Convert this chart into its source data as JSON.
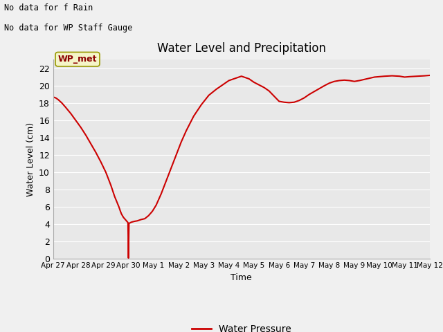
{
  "title": "Water Level and Precipitation",
  "xlabel": "Time",
  "ylabel": "Water Level (cm)",
  "annotation_lines": [
    "No data for f Rain",
    "No data for WP Staff Gauge"
  ],
  "legend_label": "Water Pressure",
  "legend_color": "#cc0000",
  "plot_bg_color": "#e8e8e8",
  "line_color": "#cc0000",
  "ylim": [
    0,
    23
  ],
  "yticks": [
    0,
    2,
    4,
    6,
    8,
    10,
    12,
    14,
    16,
    18,
    20,
    22
  ],
  "x_tick_labels": [
    "Apr 27",
    "Apr 28",
    "Apr 29",
    "Apr 30",
    "May 1",
    "May 2",
    "May 3",
    "May 4",
    "May 5",
    "May 6",
    "May 7",
    "May 8",
    "May 9",
    "May 10",
    "May 11",
    "May 12"
  ],
  "x_numeric": [
    0,
    1,
    2,
    3,
    4,
    5,
    6,
    7,
    8,
    9,
    10,
    11,
    12,
    13,
    14,
    15
  ],
  "water_x": [
    0.0,
    0.1,
    0.2,
    0.35,
    0.5,
    0.7,
    0.9,
    1.1,
    1.3,
    1.5,
    1.7,
    1.9,
    2.1,
    2.3,
    2.45,
    2.55,
    2.62,
    2.68,
    2.72,
    2.76,
    2.8,
    2.83,
    2.86,
    2.89,
    2.92,
    2.95,
    2.98,
    3.0,
    3.02,
    3.05,
    3.08,
    3.12,
    3.18,
    3.25,
    3.35,
    3.5,
    3.65,
    3.8,
    3.95,
    4.1,
    4.3,
    4.5,
    4.7,
    4.9,
    5.1,
    5.3,
    5.6,
    5.9,
    6.2,
    6.5,
    6.8,
    7.0,
    7.1,
    7.2,
    7.3,
    7.4,
    7.5,
    7.6,
    7.7,
    7.8,
    7.9,
    8.0,
    8.2,
    8.4,
    8.5,
    8.6,
    8.7,
    8.8,
    8.9,
    9.0,
    9.2,
    9.4,
    9.6,
    9.8,
    10.0,
    10.2,
    10.5,
    10.8,
    11.0,
    11.2,
    11.4,
    11.6,
    11.8,
    12.0,
    12.2,
    12.5,
    12.8,
    13.0,
    13.2,
    13.5,
    13.8,
    14.0,
    14.2,
    14.5,
    14.8,
    15.0
  ],
  "water_y": [
    18.7,
    18.6,
    18.4,
    18.0,
    17.5,
    16.8,
    16.0,
    15.2,
    14.3,
    13.3,
    12.3,
    11.2,
    10.0,
    8.5,
    7.2,
    6.5,
    6.0,
    5.5,
    5.2,
    5.0,
    4.8,
    4.7,
    4.6,
    4.5,
    4.4,
    4.3,
    4.2,
    0.1,
    4.1,
    4.15,
    4.2,
    4.25,
    4.3,
    4.35,
    4.4,
    4.55,
    4.65,
    5.0,
    5.5,
    6.2,
    7.5,
    9.0,
    10.5,
    12.0,
    13.5,
    14.8,
    16.5,
    17.8,
    18.9,
    19.6,
    20.2,
    20.6,
    20.7,
    20.8,
    20.9,
    21.0,
    21.1,
    21.0,
    20.9,
    20.8,
    20.6,
    20.4,
    20.1,
    19.8,
    19.6,
    19.4,
    19.1,
    18.8,
    18.5,
    18.2,
    18.1,
    18.05,
    18.1,
    18.3,
    18.6,
    19.0,
    19.5,
    20.0,
    20.3,
    20.5,
    20.6,
    20.65,
    20.6,
    20.5,
    20.6,
    20.8,
    21.0,
    21.05,
    21.1,
    21.15,
    21.1,
    21.0,
    21.05,
    21.1,
    21.15,
    21.2
  ]
}
